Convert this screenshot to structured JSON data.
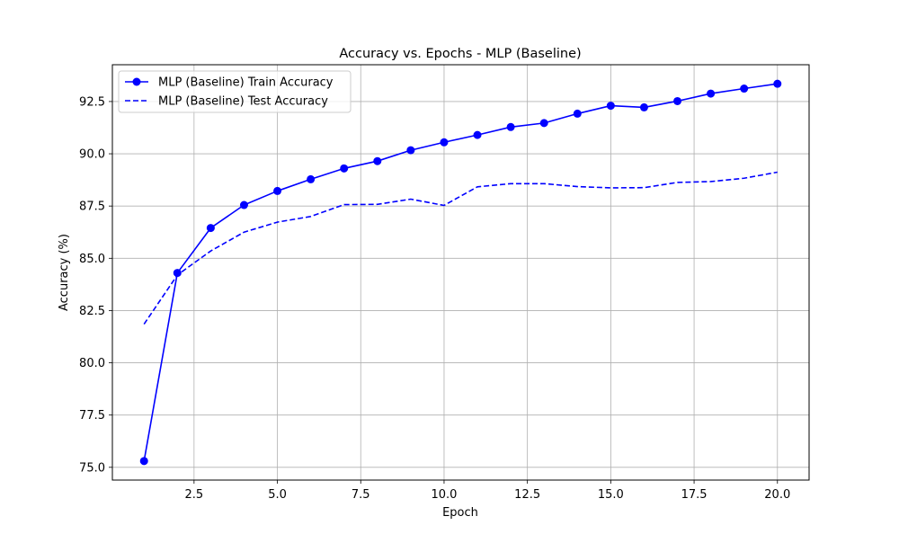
{
  "chart_data": {
    "type": "line",
    "title": "Accuracy vs. Epochs - MLP (Baseline)",
    "xlabel": "Epoch",
    "ylabel": "Accuracy (%)",
    "xlim": [
      0.05,
      20.95
    ],
    "ylim": [
      74.39,
      94.26
    ],
    "xticks": [
      2.5,
      5.0,
      7.5,
      10.0,
      12.5,
      15.0,
      17.5,
      20.0
    ],
    "xtick_labels": [
      "2.5",
      "5.0",
      "7.5",
      "10.0",
      "12.5",
      "15.0",
      "17.5",
      "20.0"
    ],
    "yticks": [
      75.0,
      77.5,
      80.0,
      82.5,
      85.0,
      87.5,
      90.0,
      92.5
    ],
    "ytick_labels": [
      "75.0",
      "77.5",
      "80.0",
      "82.5",
      "85.0",
      "87.5",
      "90.0",
      "92.5"
    ],
    "grid": true,
    "legend_position": "top-left",
    "x": [
      1,
      2,
      3,
      4,
      5,
      6,
      7,
      8,
      9,
      10,
      11,
      12,
      13,
      14,
      15,
      16,
      17,
      18,
      19,
      20
    ],
    "series": [
      {
        "name": "MLP (Baseline) Train Accuracy",
        "color": "#0000ff",
        "style": "solid",
        "marker": "circle",
        "values": [
          75.3,
          84.3,
          86.45,
          87.55,
          88.22,
          88.78,
          89.3,
          89.65,
          90.17,
          90.55,
          90.9,
          91.28,
          91.47,
          91.92,
          92.3,
          92.22,
          92.52,
          92.88,
          93.12,
          93.35
        ]
      },
      {
        "name": "MLP (Baseline) Test Accuracy",
        "color": "#0000ff",
        "style": "dashed",
        "marker": "none",
        "values": [
          81.85,
          84.2,
          85.35,
          86.25,
          86.73,
          87.0,
          87.57,
          87.58,
          87.83,
          87.53,
          88.42,
          88.57,
          88.57,
          88.43,
          88.37,
          88.38,
          88.63,
          88.67,
          88.83,
          89.12
        ]
      }
    ]
  }
}
